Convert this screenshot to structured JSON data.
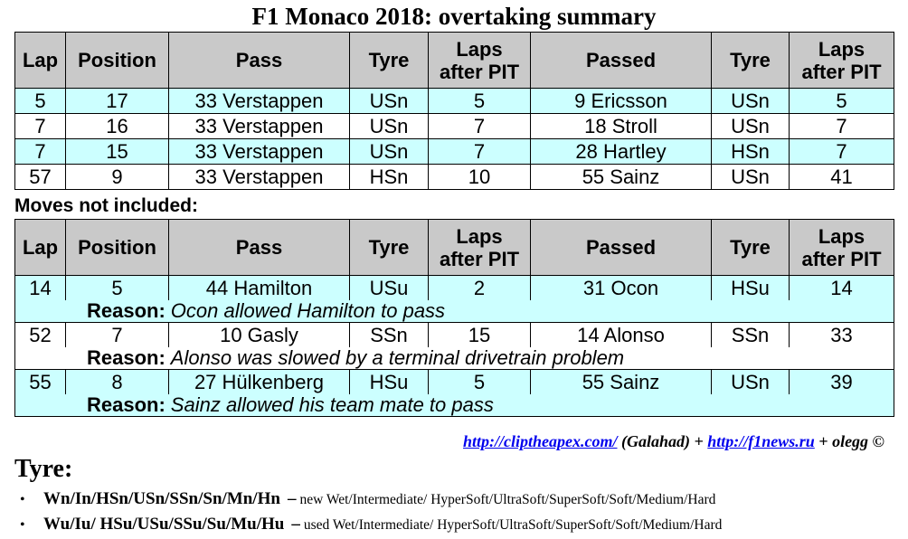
{
  "title": "F1 Monaco 2018: overtaking summary",
  "headers": {
    "lap": "Lap",
    "position": "Position",
    "pass": "Pass",
    "tyre": "Tyre",
    "laps_after_pit_1": "Laps",
    "laps_after_pit_2": "after PIT",
    "passed": "Passed"
  },
  "overtakes": [
    {
      "lap": "5",
      "position": "17",
      "pass": "33 Verstappen",
      "tyre": "USn",
      "laps_after_pit": "5",
      "passed": "9 Ericsson",
      "passed_tyre": "USn",
      "passed_laps_after_pit": "5"
    },
    {
      "lap": "7",
      "position": "16",
      "pass": "33 Verstappen",
      "tyre": "USn",
      "laps_after_pit": "7",
      "passed": "18 Stroll",
      "passed_tyre": "USn",
      "passed_laps_after_pit": "7"
    },
    {
      "lap": "7",
      "position": "15",
      "pass": "33 Verstappen",
      "tyre": "USn",
      "laps_after_pit": "7",
      "passed": "28 Hartley",
      "passed_tyre": "HSn",
      "passed_laps_after_pit": "7"
    },
    {
      "lap": "57",
      "position": "9",
      "pass": "33 Verstappen",
      "tyre": "HSn",
      "laps_after_pit": "10",
      "passed": "55 Sainz",
      "passed_tyre": "USn",
      "passed_laps_after_pit": "41"
    }
  ],
  "moves_not_included_label": "Moves not included:",
  "reason_label": "Reason:",
  "excluded": [
    {
      "lap": "14",
      "position": "5",
      "pass": "44 Hamilton",
      "tyre": "USu",
      "laps_after_pit": "2",
      "passed": "31 Ocon",
      "passed_tyre": "HSu",
      "passed_laps_after_pit": "14",
      "reason": "Ocon allowed Hamilton to pass"
    },
    {
      "lap": "52",
      "position": "7",
      "pass": "10 Gasly",
      "tyre": "SSn",
      "laps_after_pit": "15",
      "passed": "14 Alonso",
      "passed_tyre": "SSn",
      "passed_laps_after_pit": "33",
      "reason": "Alonso was slowed by a terminal drivetrain problem"
    },
    {
      "lap": "55",
      "position": "8",
      "pass": "27 Hülkenberg",
      "tyre": "HSu",
      "laps_after_pit": "5",
      "passed": "55 Sainz",
      "passed_tyre": "USn",
      "passed_laps_after_pit": "39",
      "reason": "Sainz allowed his team mate to pass"
    }
  ],
  "credits": {
    "link1": "http://cliptheapex.com/",
    "author1": "(Galahad)",
    "plus1": "+",
    "link2": "http://f1news.ru",
    "plus2": "+",
    "author2": "olegg ©"
  },
  "tyre_legend": {
    "heading": "Tyre:",
    "bullet": "•",
    "dash": "–",
    "items": [
      {
        "codes": "Wn/In/HSn/USn/SSn/Sn/Mn/Hn",
        "description": "new Wet/Intermediate/ HyperSoft/UltraSoft/SuperSoft/Soft/Medium/Hard"
      },
      {
        "codes": "Wu/Iu/ HSu/USu/SSu/Su/Mu/Hu",
        "description": "used Wet/Intermediate/ HyperSoft/UltraSoft/SuperSoft/Soft/Medium/Hard"
      }
    ]
  },
  "colors": {
    "header_bg": "#c9c9c9",
    "row_cyan": "#ccffff",
    "row_white": "#ffffff",
    "link": "#0000ee"
  }
}
